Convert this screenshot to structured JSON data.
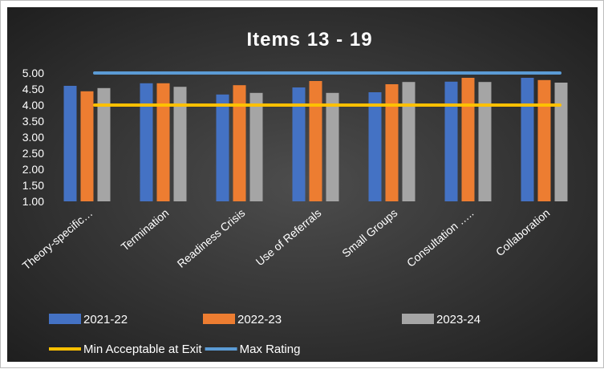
{
  "chart_data": {
    "type": "bar",
    "title": "Items 13 - 19",
    "categories": [
      "Theory-specific…",
      "Termination",
      "Readiness Crisis",
      "Use of Referrals",
      "Small Groups",
      "Consultation …..",
      "Collaboration"
    ],
    "series": [
      {
        "name": "2021-22",
        "values": [
          4.6,
          4.68,
          4.33,
          4.55,
          4.4,
          4.73,
          4.85
        ],
        "color": "#4472C4"
      },
      {
        "name": "2022-23",
        "values": [
          4.43,
          4.68,
          4.62,
          4.75,
          4.65,
          4.85,
          4.78
        ],
        "color": "#ED7D31"
      },
      {
        "name": "2023-24",
        "values": [
          4.53,
          4.57,
          4.38,
          4.38,
          4.72,
          4.72,
          4.7
        ],
        "color": "#A5A5A5"
      }
    ],
    "lines": [
      {
        "name": "Min Acceptable at Exit",
        "value": 4.0,
        "color": "#FFC000"
      },
      {
        "name": "Max Rating",
        "value": 5.0,
        "color": "#5B9BD5"
      }
    ],
    "ylim": [
      1.0,
      5.0
    ],
    "yticks": [
      "5.00",
      "4.50",
      "4.00",
      "3.50",
      "3.00",
      "2.50",
      "2.00",
      "1.50",
      "1.00"
    ],
    "legend_position": "bottom",
    "background": "#2b2b2b",
    "text_color": "#ffffff",
    "grid": false
  }
}
